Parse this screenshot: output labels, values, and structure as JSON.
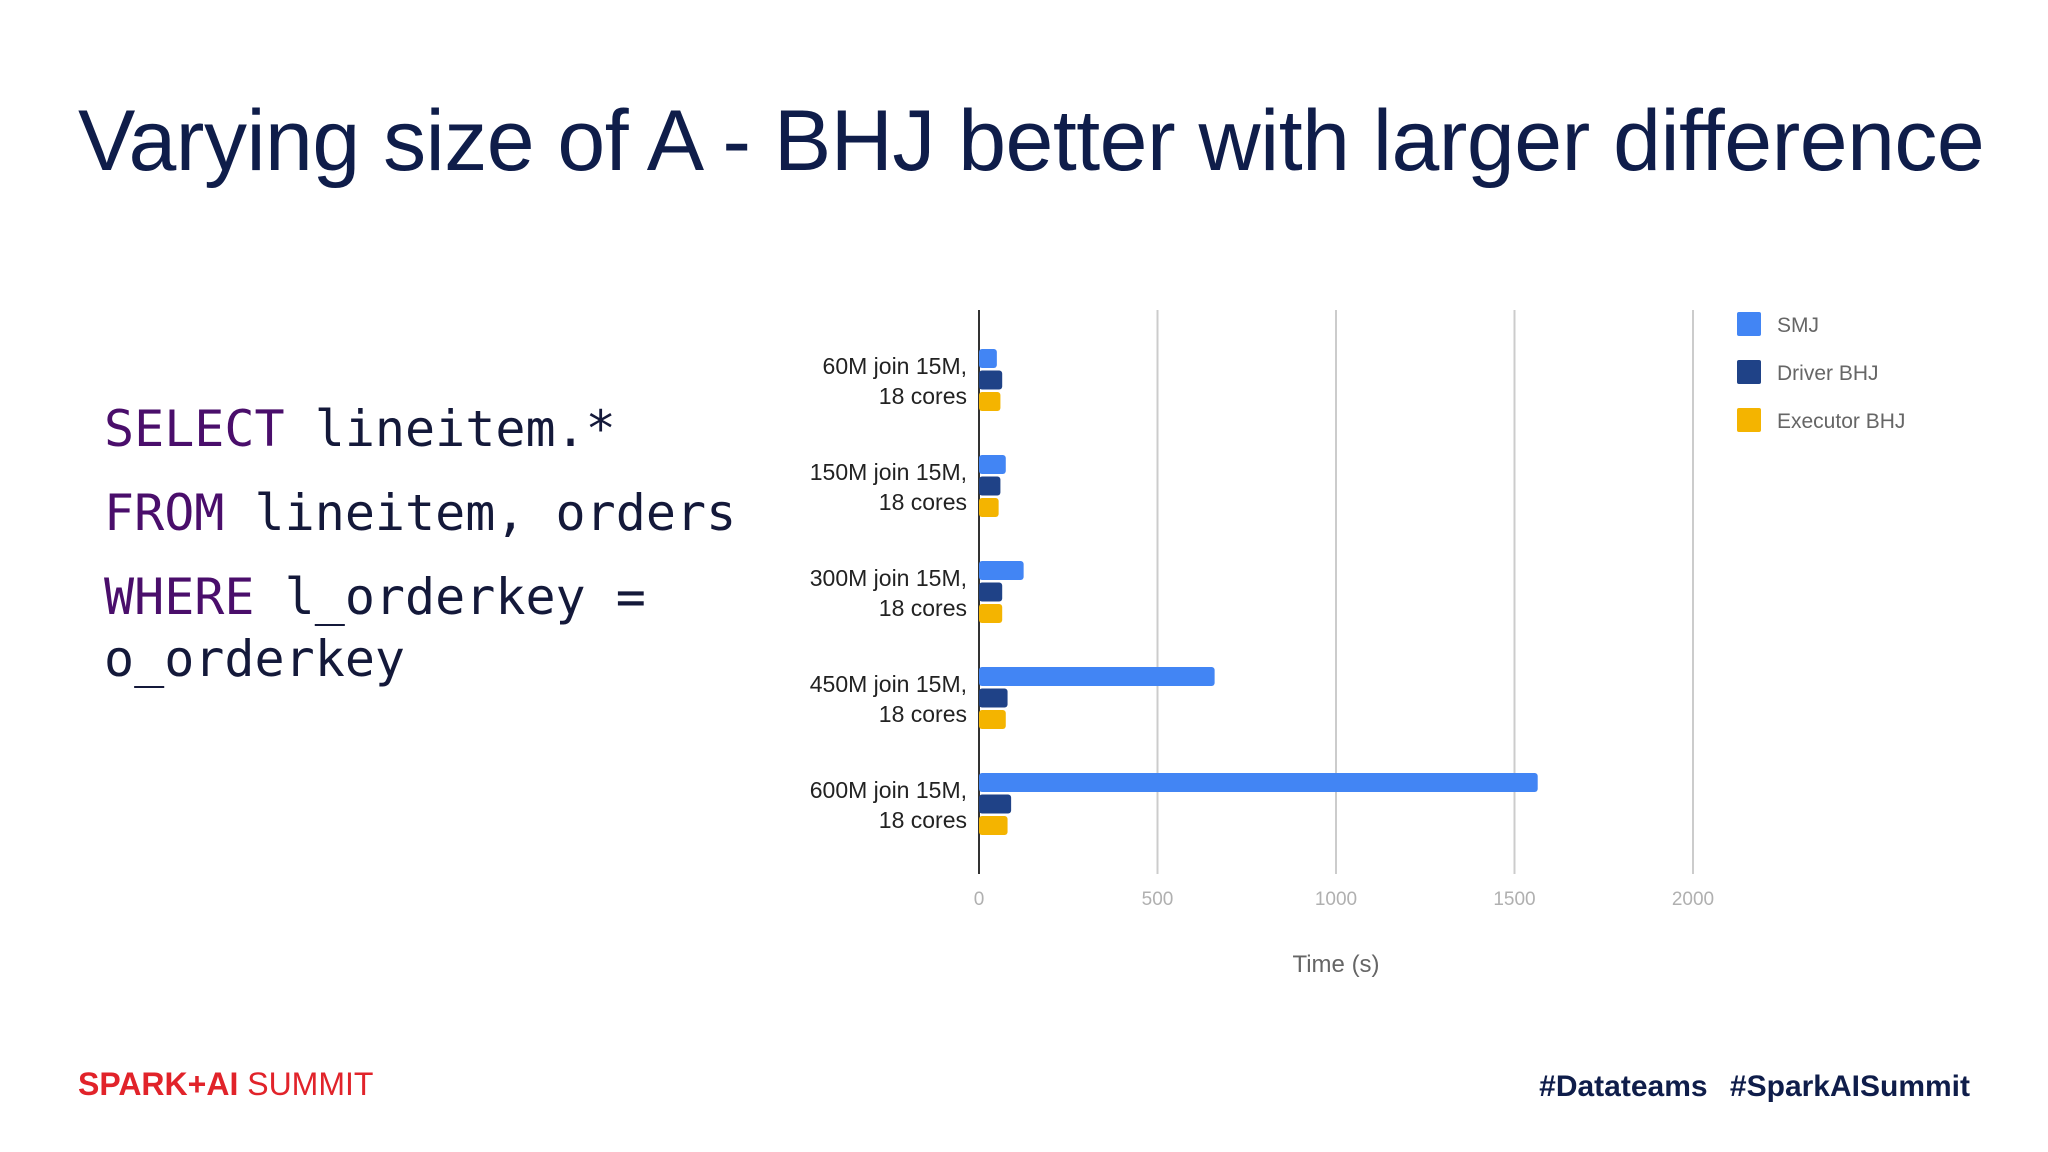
{
  "slide": {
    "title": "Varying size of A - BHJ better with larger difference",
    "code": {
      "select_kw": "SELECT",
      "select_rest": " lineitem.*",
      "from_kw": "FROM",
      "from_rest": " lineitem, orders",
      "where_kw": "WHERE",
      "where_rest": " l_orderkey =",
      "where_cont": "o_orderkey"
    },
    "footer": {
      "brand_part1": "SPARK+AI",
      "brand_part2": " SUMMIT",
      "hashtag1": "#Datateams",
      "hashtag2": "#SparkAISummit"
    }
  },
  "colors": {
    "title": "#0f1d4a",
    "keyword": "#4a0e6b",
    "brand": "#e1232a",
    "smj": "#4285f4",
    "driver_bhj": "#1f4287",
    "executor_bhj": "#f4b400"
  },
  "chart_data": {
    "type": "bar",
    "orientation": "horizontal",
    "categories": [
      [
        "60M join 15M,",
        "18 cores"
      ],
      [
        "150M join 15M,",
        "18 cores"
      ],
      [
        "300M join 15M,",
        "18 cores"
      ],
      [
        "450M join 15M,",
        "18 cores"
      ],
      [
        "600M join 15M,",
        "18 cores"
      ]
    ],
    "series": [
      {
        "name": "SMJ",
        "color": "#4285f4",
        "values": [
          50,
          75,
          125,
          660,
          1565
        ]
      },
      {
        "name": "Driver BHJ",
        "color": "#1f4287",
        "values": [
          65,
          60,
          65,
          80,
          90
        ]
      },
      {
        "name": "Executor BHJ",
        "color": "#f4b400",
        "values": [
          60,
          55,
          65,
          75,
          80
        ]
      }
    ],
    "xlabel": "Time (s)",
    "ylabel": "",
    "xlim": [
      0,
      2000
    ],
    "xticks": [
      0,
      500,
      1000,
      1500,
      2000
    ],
    "grid": true,
    "legend": "right"
  }
}
